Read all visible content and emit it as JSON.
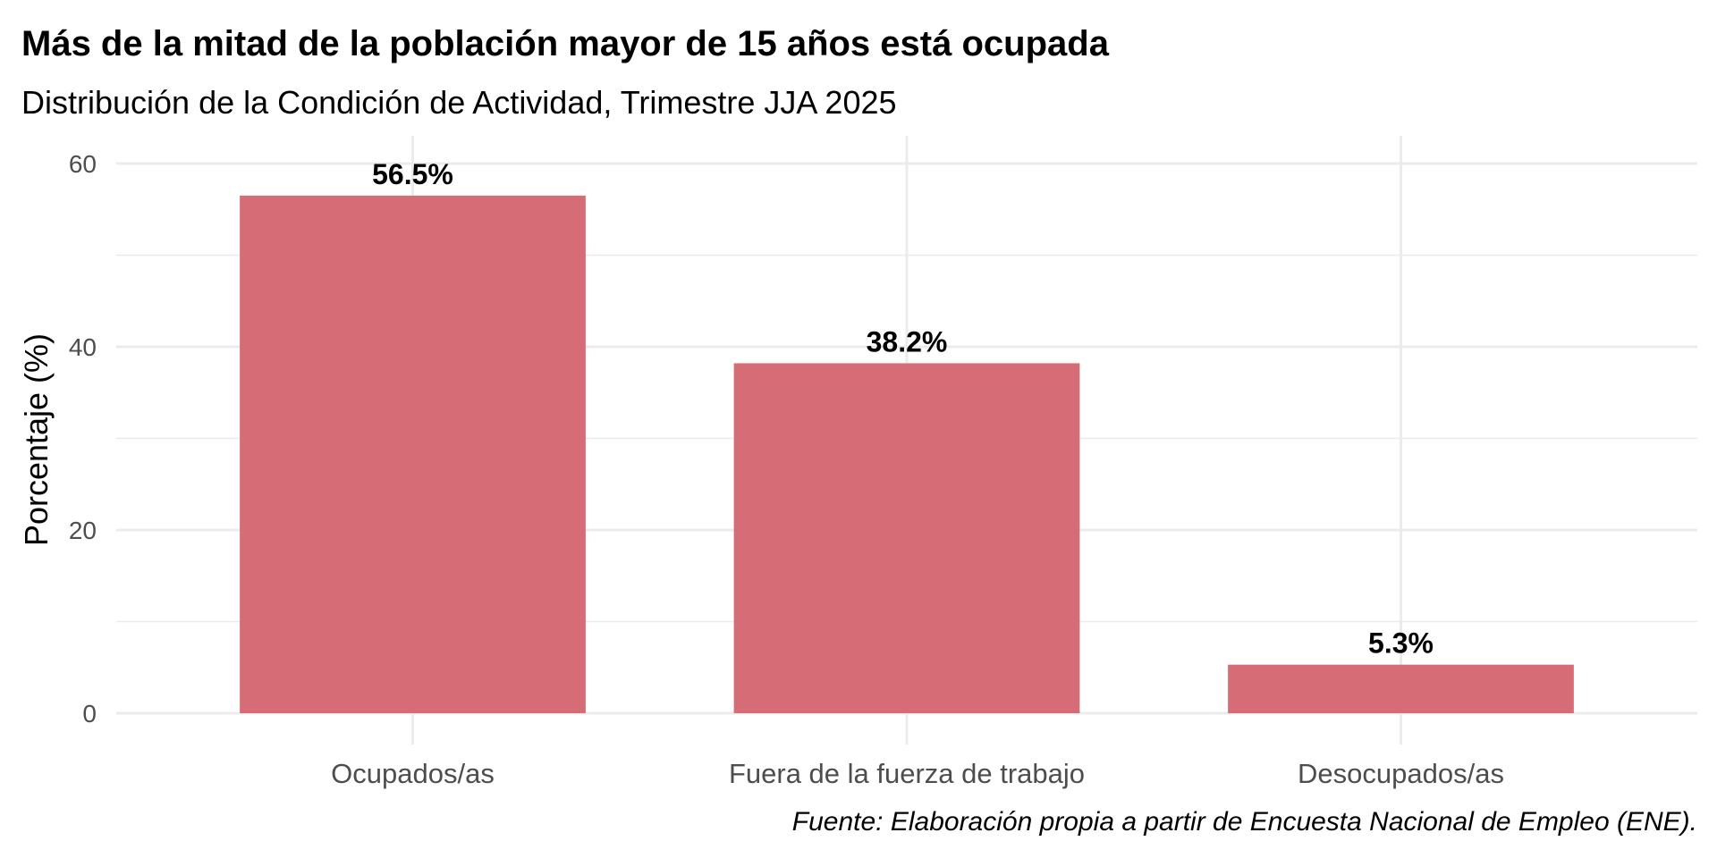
{
  "chart_data": {
    "type": "bar",
    "title": "Más de la mitad de la población mayor de 15 años está ocupada",
    "subtitle": "Distribución de la Condición de Actividad, Trimestre JJA 2025",
    "xlabel": "",
    "ylabel": "Porcentaje (%)",
    "caption": "Fuente: Elaboración propia a partir de Encuesta Nacional de Empleo (ENE).",
    "categories": [
      "Ocupados/as",
      "Fuera de la fuerza de trabajo",
      "Desocupados/as"
    ],
    "values": [
      56.5,
      38.2,
      5.3
    ],
    "value_labels": [
      "56.5%",
      "38.2%",
      "5.3%"
    ],
    "ylim": [
      0,
      62
    ],
    "yticks": [
      0,
      20,
      40,
      60
    ],
    "ytick_labels": [
      "0",
      "20",
      "40",
      "60"
    ],
    "y_minor_ticks": [
      10,
      30,
      50
    ],
    "grid": true,
    "legend": "none",
    "bar_color": "#D66D76"
  }
}
